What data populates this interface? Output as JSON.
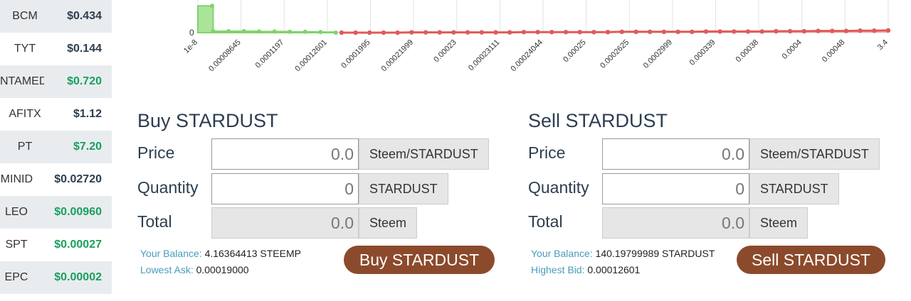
{
  "tokens": [
    {
      "symbol": "BCM",
      "price": "$0.434",
      "trend": "neutral"
    },
    {
      "symbol": "TYT",
      "price": "$0.144",
      "trend": "neutral"
    },
    {
      "symbol": "NTAMED",
      "price": "$0.720",
      "trend": "up"
    },
    {
      "symbol": "AFITX",
      "price": "$1.12",
      "trend": "neutral"
    },
    {
      "symbol": "PT",
      "price": "$7.20",
      "trend": "up"
    },
    {
      "symbol": "MINID",
      "price": "$0.02720",
      "trend": "neutral"
    },
    {
      "symbol": "LEO",
      "price": "$0.00960",
      "trend": "up"
    },
    {
      "symbol": "SPT",
      "price": "$0.00027",
      "trend": "up"
    },
    {
      "symbol": "EPC",
      "price": "$0.00002",
      "trend": "up"
    }
  ],
  "chart_data": {
    "type": "area",
    "y_tick_labels": [
      "0"
    ],
    "x_tick_labels": [
      "1e-8",
      "0.00008645",
      "0.0001197",
      "0.00012601",
      "0.0001995",
      "0.00021999",
      "0.00023",
      "0.00023111",
      "0.00024044",
      "0.00025",
      "0.0002625",
      "0.0002999",
      "0.000339",
      "0.00038",
      "0.0004",
      "0.00048",
      "3.4"
    ],
    "series": [
      {
        "side": "bid",
        "color": "#7fd36b",
        "values": [
          0.9,
          0.05,
          0.05,
          0.05,
          0.04,
          0.04,
          0.03,
          0.03,
          0.02,
          0.0
        ]
      },
      {
        "side": "ask",
        "color": "#e05a5a",
        "values": [
          0.0,
          0.0,
          0.0,
          0.0,
          0.0,
          0.01,
          0.01,
          0.01,
          0.01,
          0.01,
          0.01,
          0.01,
          0.01,
          0.02,
          0.02,
          0.02,
          0.02,
          0.02,
          0.02,
          0.02,
          0.03,
          0.03,
          0.03,
          0.03,
          0.03,
          0.03,
          0.04,
          0.04,
          0.04,
          0.04,
          0.04,
          0.05,
          0.05,
          0.05,
          0.06,
          0.06,
          0.06,
          0.07,
          0.07,
          0.08
        ]
      }
    ]
  },
  "buy": {
    "title": "Buy STARDUST",
    "price_label": "Price",
    "price_value": "0.0",
    "price_unit": "Steem/STARDUST",
    "quantity_label": "Quantity",
    "quantity_value": "0",
    "quantity_unit": "STARDUST",
    "total_label": "Total",
    "total_value": "0.0",
    "total_unit": "Steem",
    "balance_label": "Your Balance:",
    "balance_value": "4.16364413 STEEMP",
    "ask_label": "Lowest Ask:",
    "ask_value": "0.00019000",
    "button_label": "Buy STARDUST"
  },
  "sell": {
    "title": "Sell STARDUST",
    "price_label": "Price",
    "price_value": "0.0",
    "price_unit": "Steem/STARDUST",
    "quantity_label": "Quantity",
    "quantity_value": "0",
    "quantity_unit": "STARDUST",
    "total_label": "Total",
    "total_value": "0.0",
    "total_unit": "Steem",
    "balance_label": "Your Balance:",
    "balance_value": "140.19799989 STARDUST",
    "bid_label": "Highest Bid:",
    "bid_value": "0.00012601",
    "button_label": "Sell STARDUST"
  },
  "colors": {
    "accent_button": "#8b4a2b",
    "info_label": "#4a9bbd",
    "positive_price": "#18a05e",
    "heading": "#2c3e50"
  }
}
